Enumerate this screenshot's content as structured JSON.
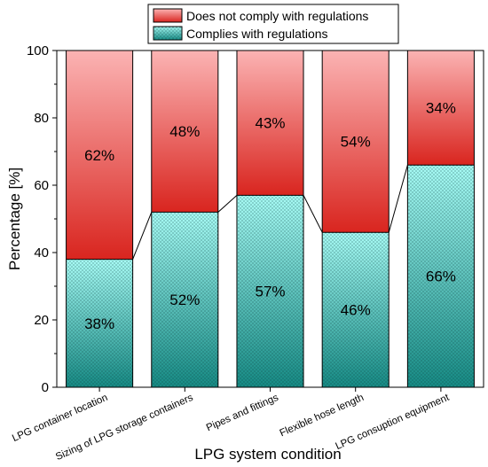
{
  "chart_data": {
    "type": "bar",
    "stacked": true,
    "percent": true,
    "xlabel": "LPG system condition",
    "ylabel": "Percentage [%]",
    "ylim": [
      0,
      100
    ],
    "yticks": [
      "0",
      "20",
      "40",
      "60",
      "80",
      "100"
    ],
    "grid": false,
    "legend_position": "top-center",
    "categories": [
      "LPG container location",
      "Sizing of LPG storage containers",
      "Pipes and fittings",
      "Flexible hose length",
      "LPG consuption equipment"
    ],
    "series": [
      {
        "name": "Complies with regulations",
        "values": [
          38,
          52,
          57,
          46,
          66
        ],
        "labels": [
          "38%",
          "52%",
          "57%",
          "46%",
          "66%"
        ],
        "color_top": "#a8fbf5",
        "color_bottom": "#168a84",
        "pattern": "dots"
      },
      {
        "name": "Does not comply with regulations",
        "values": [
          62,
          48,
          43,
          54,
          34
        ],
        "labels": [
          "62%",
          "48%",
          "43%",
          "54%",
          "34%"
        ],
        "color_top": "#fbb3b3",
        "color_bottom": "#d9251f",
        "pattern": "none"
      }
    ],
    "connector_lines": true
  }
}
